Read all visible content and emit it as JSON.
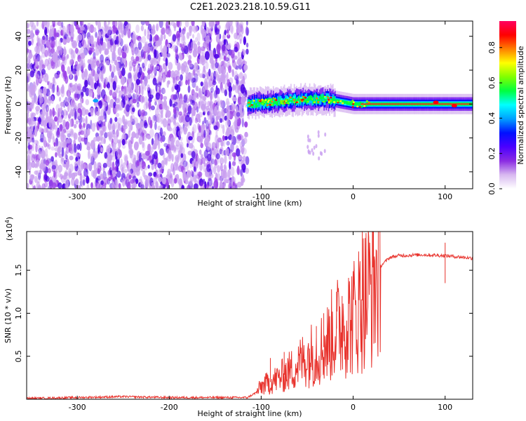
{
  "figure_title": "C2E1.2023.218.10.59.G11",
  "chart_data": [
    {
      "type": "heatmap",
      "title": "C2E1.2023.218.10.59.G11",
      "xlabel": "Height of straight line (km)",
      "ylabel": "Frequency (Hz)",
      "xlim": [
        -355,
        130
      ],
      "ylim": [
        -50,
        49
      ],
      "x_ticks": [
        -300,
        -200,
        -100,
        0,
        100
      ],
      "y_ticks": [
        -40,
        -20,
        0,
        20,
        40
      ],
      "grid": false,
      "colorbar": {
        "label": "Normalized spectral amplitude",
        "range": [
          0,
          0.95
        ],
        "ticks": [
          0.0,
          0.2,
          0.4,
          0.6,
          0.8
        ],
        "colormap": [
          "#ffffff",
          "#d8b8f0",
          "#8a2be2",
          "#4b00ff",
          "#0010ff",
          "#00a0ff",
          "#00ffff",
          "#00ff40",
          "#80ff00",
          "#ffff00",
          "#ff8000",
          "#ff0000",
          "#ff0060"
        ]
      },
      "regions": [
        {
          "name": "noise",
          "x": [
            -355,
            -115
          ],
          "freq": [
            -50,
            49
          ],
          "amplitude": [
            0.0,
            0.15
          ]
        },
        {
          "name": "tone",
          "x": [
            -115,
            130
          ],
          "freq_center": [
            0,
            2.5,
            3,
            0,
            0,
            0
          ],
          "freq_x": [
            -115,
            -60,
            -30,
            0,
            60,
            130
          ],
          "amplitude": [
            0.3,
            0.95
          ]
        }
      ],
      "tone_peaks": [
        {
          "x": -280,
          "freq": 2,
          "amplitude": 0.4
        },
        {
          "x": 90,
          "freq": 1,
          "amplitude": 0.85
        },
        {
          "x": 110,
          "freq": -1,
          "amplitude": 0.85
        }
      ]
    },
    {
      "type": "line",
      "xlabel": "Height of straight line (km)",
      "ylabel": "SNR (10 * v/v)",
      "y_multiplier": "(x10",
      "y_multiplier_exp": "4",
      "y_multiplier_close": ")",
      "xlim": [
        -355,
        130
      ],
      "ylim": [
        0,
        1.95
      ],
      "x_ticks": [
        -300,
        -200,
        -100,
        0,
        100
      ],
      "y_ticks": [
        0.5,
        1.0,
        1.5
      ],
      "grid": false,
      "color": "#e8322c",
      "series": [
        {
          "x": [
            -355,
            -300,
            -250,
            -200,
            -150,
            -115,
            -105,
            -100,
            -90,
            -80,
            -70,
            -60,
            -50,
            -40,
            -30,
            -20,
            -10,
            0,
            10,
            20,
            30,
            40,
            50,
            75,
            100,
            130
          ],
          "values": [
            0.01,
            0.02,
            0.03,
            0.02,
            0.02,
            0.02,
            0.08,
            0.15,
            0.2,
            0.25,
            0.32,
            0.4,
            0.5,
            0.55,
            0.62,
            0.8,
            0.9,
            0.95,
            1.15,
            1.3,
            1.55,
            1.65,
            1.67,
            1.68,
            1.67,
            1.64
          ],
          "spikes": [
            [
              -90,
              0.48
            ],
            [
              -75,
              0.55
            ],
            [
              -40,
              0.85
            ],
            [
              -32,
              1.0
            ],
            [
              -18,
              1.25
            ],
            [
              -12,
              1.2
            ],
            [
              10,
              1.95
            ],
            [
              13,
              1.35
            ],
            [
              100,
              1.82
            ],
            [
              100,
              1.35
            ]
          ]
        }
      ]
    }
  ]
}
